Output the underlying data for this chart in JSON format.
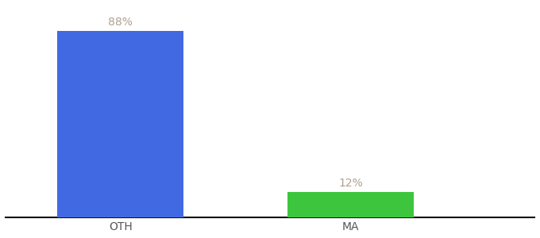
{
  "categories": [
    "OTH",
    "MA"
  ],
  "values": [
    88,
    12
  ],
  "bar_colors": [
    "#4169e1",
    "#3dc63d"
  ],
  "label_color": "#b0a090",
  "label_fontsize": 10,
  "tick_fontsize": 10,
  "tick_color": "#555555",
  "background_color": "#ffffff",
  "ylim": [
    0,
    100
  ],
  "bar_width": 0.55,
  "figsize": [
    6.8,
    3.0
  ],
  "dpi": 100,
  "spine_color": "#111111",
  "x_positions": [
    1,
    2
  ]
}
